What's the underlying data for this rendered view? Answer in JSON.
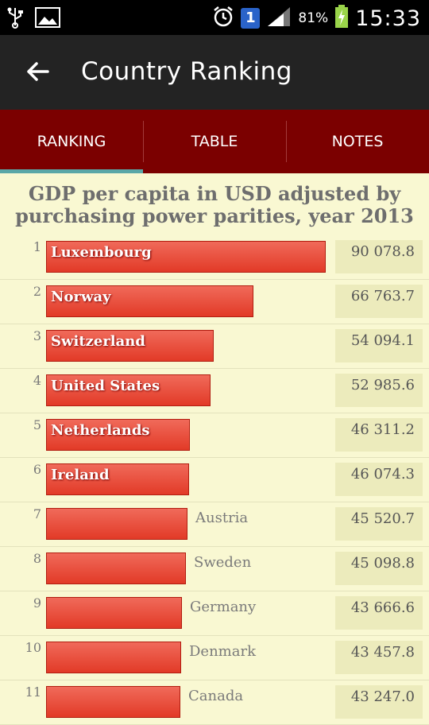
{
  "statusbar": {
    "battery_percent": "81%",
    "time": "15:33",
    "notification_count": "1"
  },
  "appbar": {
    "title": "Country Ranking"
  },
  "tabs": [
    {
      "label": "RANKING"
    },
    {
      "label": "TABLE"
    },
    {
      "label": "NOTES"
    }
  ],
  "chart": {
    "title_line1": "GDP per capita in USD adjusted by",
    "title_line2": "purchasing power parities,  year 2013",
    "bar_color": "#e8402e"
  },
  "chart_data": {
    "type": "bar",
    "title": "GDP per capita in USD adjusted by purchasing power parities,  year 2013",
    "categories": [
      "Luxembourg",
      "Norway",
      "Switzerland",
      "United States",
      "Netherlands",
      "Ireland",
      "Austria",
      "Sweden",
      "Germany",
      "Denmark",
      "Canada"
    ],
    "ranks": [
      "1",
      "2",
      "3",
      "4",
      "5",
      "6",
      "7",
      "8",
      "9",
      "10",
      "11"
    ],
    "values": [
      90078.8,
      66763.7,
      54094.1,
      52985.6,
      46311.2,
      46074.3,
      45520.7,
      45098.8,
      43666.6,
      43457.8,
      43247.0
    ],
    "value_labels": [
      "90 078.8",
      "66 763.7",
      "54 094.1",
      "52 985.6",
      "46 311.2",
      "46 074.3",
      "45 520.7",
      "45 098.8",
      "43 666.6",
      "43 457.8",
      "43 247.0"
    ]
  }
}
